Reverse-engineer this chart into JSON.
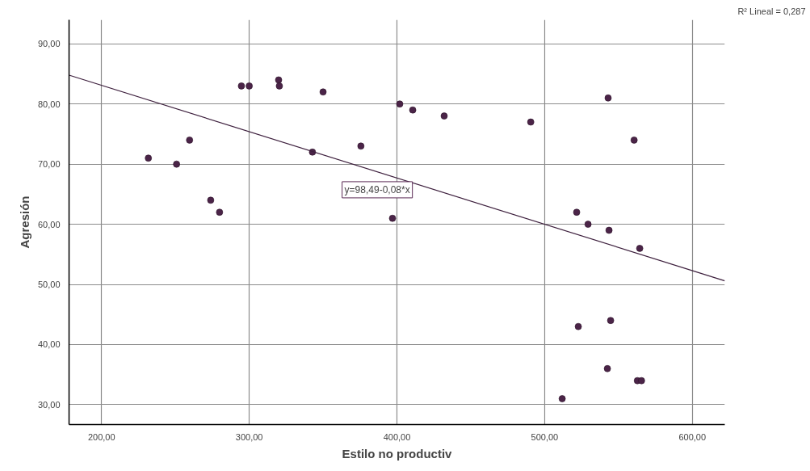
{
  "chart_data": {
    "type": "scatter",
    "xlabel": "Estilo no productiv",
    "ylabel": "Agresión",
    "xlim": [
      178,
      622
    ],
    "ylim": [
      26.7,
      94
    ],
    "xticks": [
      {
        "value": 200,
        "label": "200,00"
      },
      {
        "value": 300,
        "label": "300,00"
      },
      {
        "value": 400,
        "label": "400,00"
      },
      {
        "value": 500,
        "label": "500,00"
      },
      {
        "value": 600,
        "label": "600,00"
      }
    ],
    "yticks": [
      {
        "value": 30,
        "label": "30,00"
      },
      {
        "value": 40,
        "label": "40,00"
      },
      {
        "value": 50,
        "label": "50,00"
      },
      {
        "value": 60,
        "label": "60,00"
      },
      {
        "value": 70,
        "label": "70,00"
      },
      {
        "value": 80,
        "label": "80,00"
      },
      {
        "value": 90,
        "label": "90,00"
      }
    ],
    "grid": true,
    "marker": "circle",
    "series": [
      {
        "color": "#4b2448",
        "x": [
          231.7,
          250.8,
          259.6,
          273.9,
          279.9,
          294.7,
          300,
          319.9,
          320.4,
          350,
          342.8,
          375.6,
          397,
          401.9,
          410.7,
          432,
          490.6,
          543,
          560.6,
          521.7,
          529.4,
          543.6,
          564.4,
          522.8,
          544.7,
          542.5,
          562.8,
          565.6,
          511.9
        ],
        "values": [
          71,
          70,
          74,
          64,
          62,
          83,
          83,
          84,
          83,
          82,
          72,
          73,
          61,
          80,
          79,
          78,
          77,
          81,
          74,
          62,
          60,
          59,
          56,
          43,
          44,
          36,
          34,
          34,
          31
        ]
      },
      {
        "type": "line",
        "marker": "none",
        "color": "#3d1f3d",
        "line_style": "solid",
        "x": [
          178,
          622
        ],
        "values": [
          84.8,
          50.6
        ]
      }
    ],
    "annotations": [
      "y=98,49-0,08*x",
      "R² Lineal = 0,287"
    ]
  }
}
